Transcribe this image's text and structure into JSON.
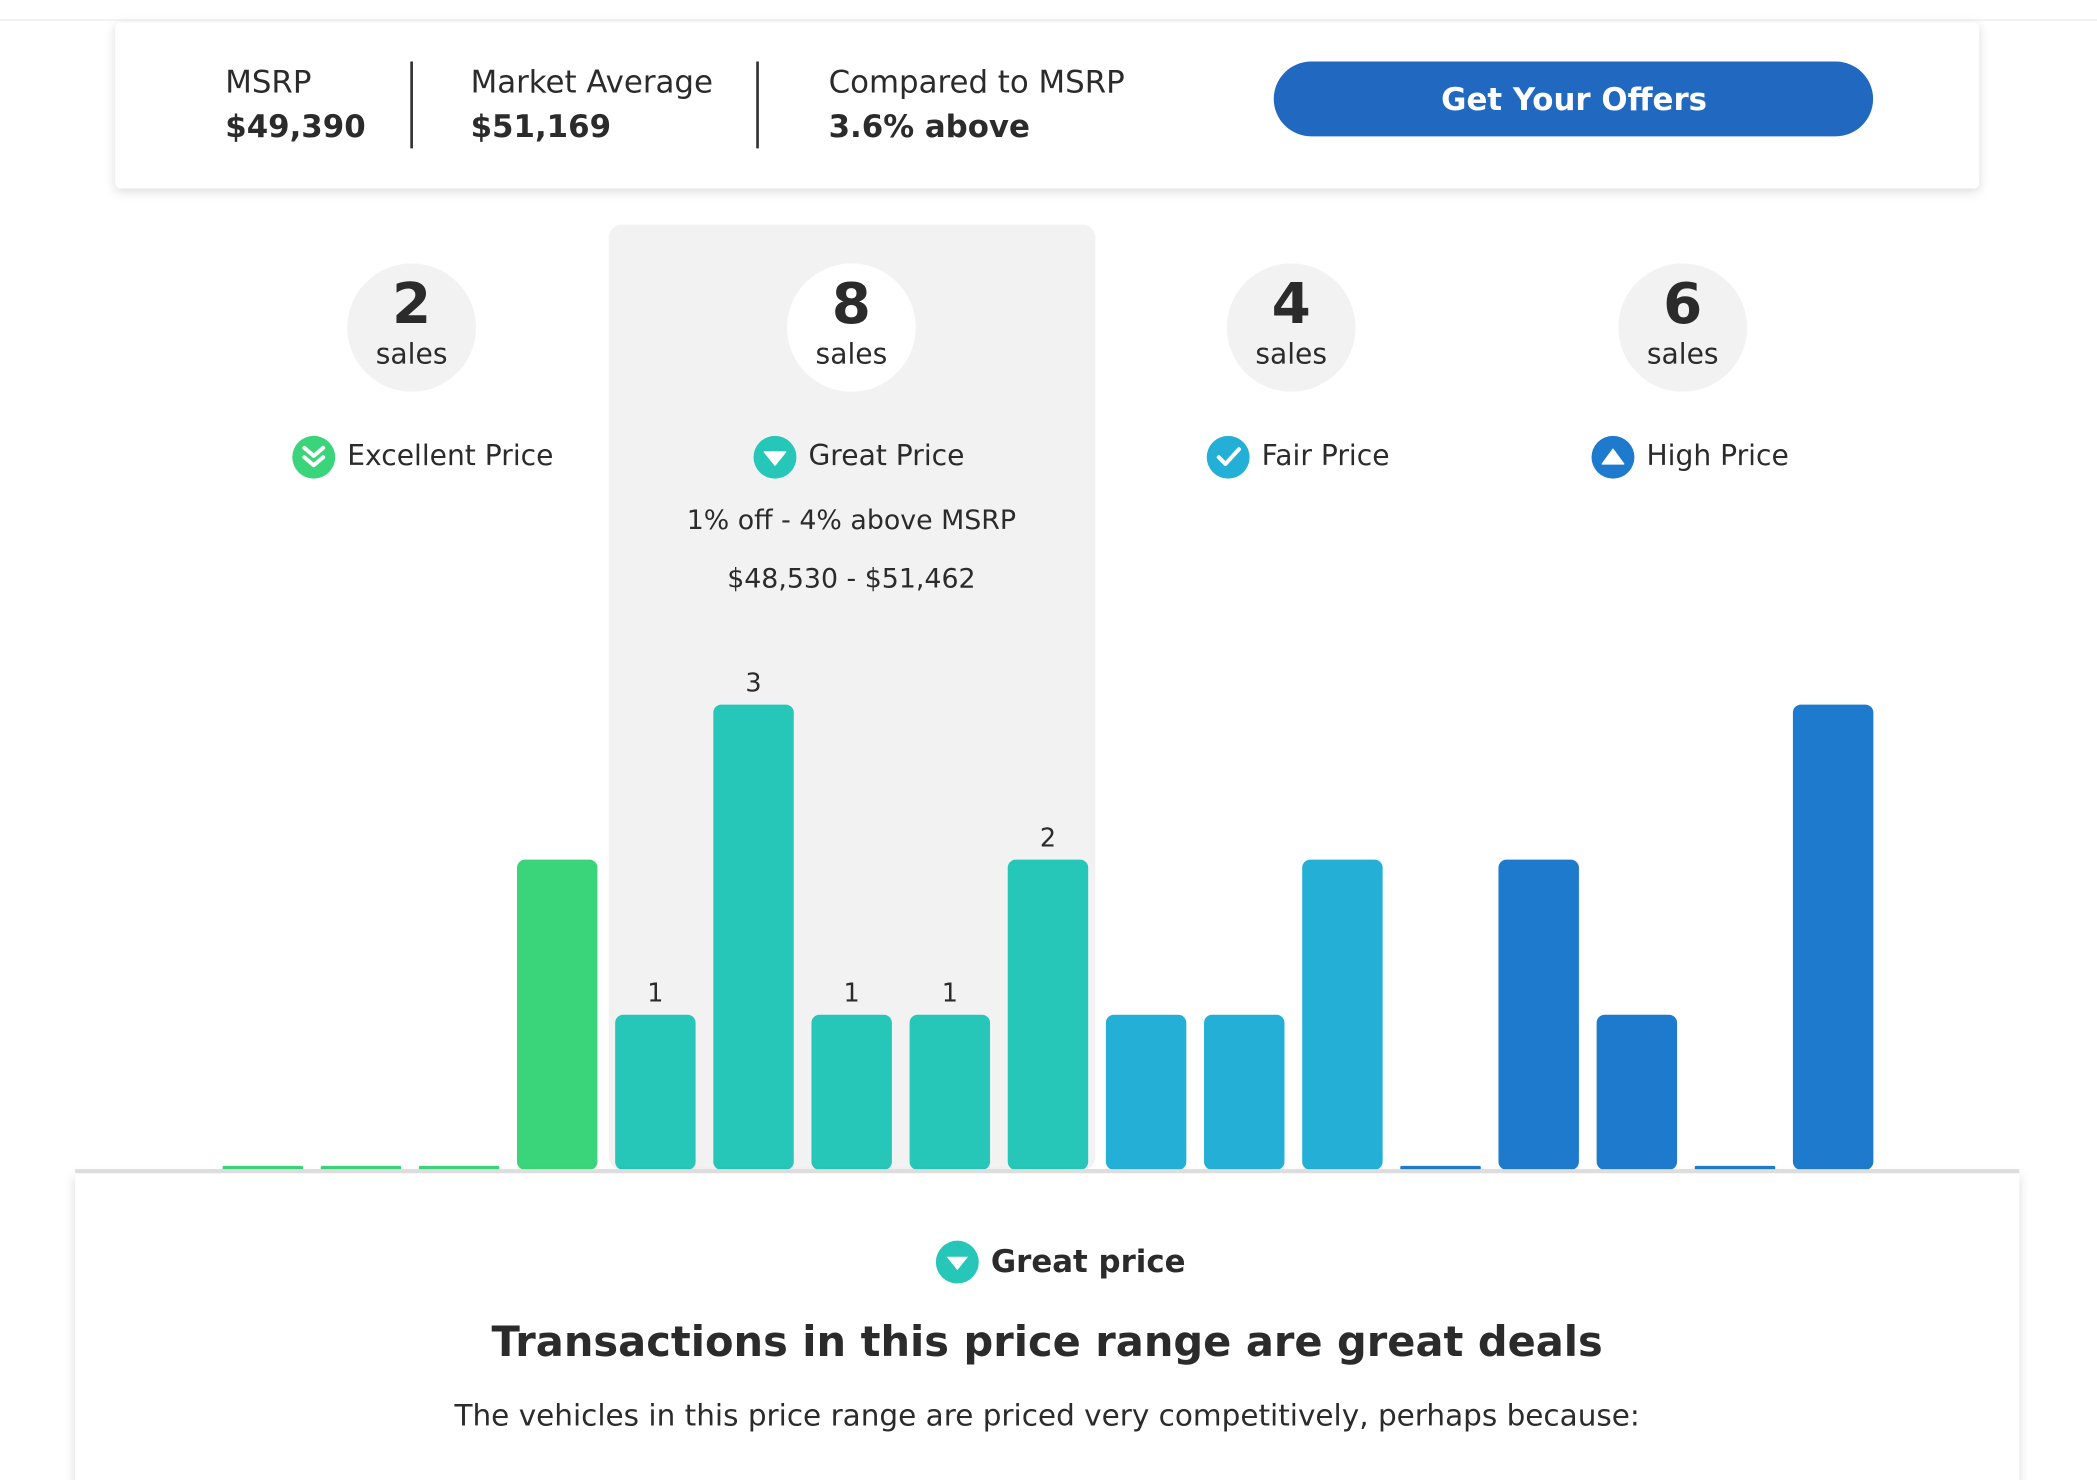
{
  "summary": {
    "items": [
      {
        "label": "MSRP",
        "value": "$49,390"
      },
      {
        "label": "Market Average",
        "value": "$51,169"
      },
      {
        "label": "Compared to MSRP",
        "value": "3.6% above"
      }
    ],
    "button": "Get Your Offers"
  },
  "chart_data": {
    "type": "bar",
    "selected": 1,
    "groups": [
      {
        "count": 2,
        "unit": "sales",
        "label": "Excellent Price",
        "color": "#3ad47a",
        "values": [
          0,
          0,
          0,
          2
        ]
      },
      {
        "count": 8,
        "unit": "sales",
        "label": "Great Price",
        "range_pct": "1% off - 4% above MSRP",
        "range_price": "$48,530 - $51,462",
        "color": "#26c6b8",
        "values": [
          1,
          3,
          1,
          1,
          2
        ]
      },
      {
        "count": 4,
        "unit": "sales",
        "label": "Fair Price",
        "color": "#24b0d6",
        "values": [
          1,
          1,
          2
        ]
      },
      {
        "count": 6,
        "unit": "sales",
        "label": "High Price",
        "color": "#1e7acc",
        "values": [
          0,
          2,
          1,
          0,
          3
        ]
      }
    ]
  },
  "detail": {
    "label": "Great price",
    "heading": "Transactions in this price range are great deals",
    "text": "The vehicles in this price range are priced very competitively, perhaps because:"
  }
}
